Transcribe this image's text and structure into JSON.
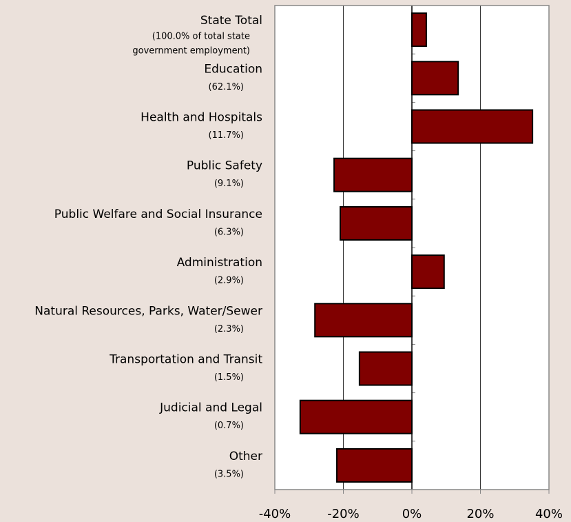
{
  "chart_data": {
    "type": "hbar",
    "categories": [
      "State Total",
      "Education",
      "Health and Hospitals",
      "Public Safety",
      "Public Welfare and Social Insurance",
      "Administration",
      "Natural Resources, Parks, Water/Sewer",
      "Transportation and Transit",
      "Judicial and Legal",
      "Other"
    ],
    "category_notes": [
      [
        "(100.0% of total state",
        "government employment)"
      ],
      [
        "(62.1%)"
      ],
      [
        "(11.7%)"
      ],
      [
        "(9.1%)"
      ],
      [
        "(6.3%)"
      ],
      [
        "(2.9%)"
      ],
      [
        "(2.3%)"
      ],
      [
        "(1.5%)"
      ],
      [
        "(0.7%)"
      ],
      [
        "(3.5%)"
      ]
    ],
    "values": [
      4.2,
      13.5,
      35.2,
      -22.7,
      -20.9,
      9.4,
      -28.3,
      -15.3,
      -32.6,
      -21.9
    ],
    "color": "#800000",
    "xlim": [
      -40,
      40
    ],
    "xticks": [
      {
        "value": -40,
        "label": "-40%"
      },
      {
        "value": -20,
        "label": "-20%"
      },
      {
        "value": 0,
        "label": "0%"
      },
      {
        "value": 20,
        "label": "20%"
      },
      {
        "value": 40,
        "label": "40%"
      }
    ],
    "grid": true
  }
}
